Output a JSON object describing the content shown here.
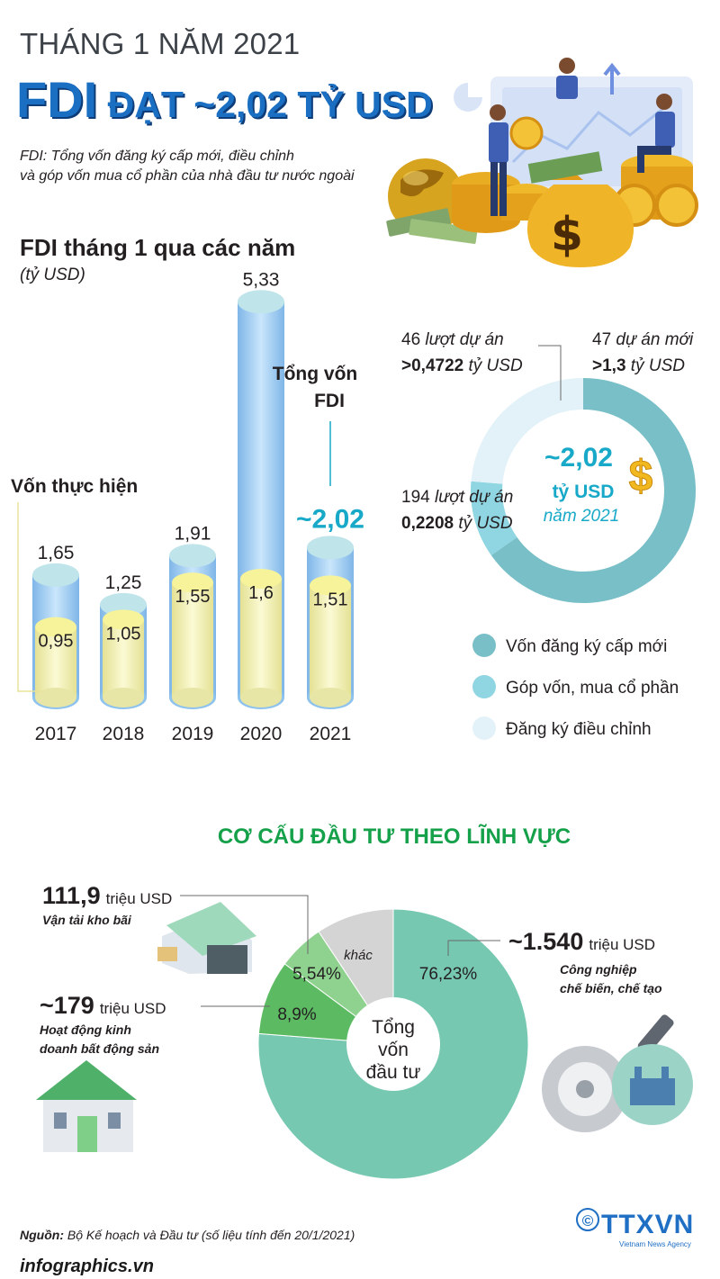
{
  "header": {
    "kicker": "THÁNG 1 NĂM 2021",
    "headline_main": "FDI",
    "headline_rest": " ĐẠT ~2,02 TỶ USD",
    "note_line1": "FDI: Tổng vốn đăng ký cấp mới, điều chỉnh",
    "note_line2": "và góp vốn mua cổ phần của nhà đầu tư nước ngoài"
  },
  "colors": {
    "title_blue": "#1b6fc2",
    "total_bar": "#9fd0ee",
    "realized_bar": "#f3f1a4",
    "new_registration": "#79bfc7",
    "share_purchase": "#8fd5e2",
    "adjusted": "#e2f2f8",
    "accent_cyan": "#18a9c8",
    "sector_green": "#77c8b1",
    "heading_green": "#15a04a"
  },
  "icons": [
    "money-bag-icon",
    "globe-icon",
    "dollar-sign-icon",
    "warehouse-icon",
    "house-icon",
    "gear-wrench-factory-icon"
  ],
  "chart_data": [
    {
      "type": "bar",
      "title": "FDI tháng 1 qua các năm",
      "unit": "(tỷ USD)",
      "categories": [
        "2017",
        "2018",
        "2019",
        "2020",
        "2021"
      ],
      "series": [
        {
          "name": "Tổng vốn FDI",
          "values": [
            1.65,
            1.25,
            1.91,
            5.33,
            2.02
          ],
          "labels": [
            "1,65",
            "1,25",
            "1,91",
            "5,33",
            "~2,02"
          ]
        },
        {
          "name": "Vốn thực hiện",
          "values": [
            0.95,
            1.05,
            1.55,
            1.6,
            1.51
          ],
          "labels": [
            "0,95",
            "1,05",
            "1,55",
            "1,6",
            "1,51"
          ]
        }
      ],
      "annotation_total": "Tổng vốn FDI",
      "annotation_realized": "Vốn thực hiện",
      "ylim": [
        0,
        5.5
      ]
    },
    {
      "type": "pie",
      "center_value": "~2,02",
      "center_unit": "tỷ USD",
      "center_year": "năm 2021",
      "slices": [
        {
          "name": "Vốn đăng ký cấp mới",
          "value": 1.3,
          "count_text": "47 dự án mới",
          "value_text": ">1,3 tỷ USD"
        },
        {
          "name": "Góp vốn, mua cổ phần",
          "value": 0.2208,
          "count_text": "194 lượt dự án",
          "value_text": "0,2208 tỷ USD"
        },
        {
          "name": "Đăng ký điều chỉnh",
          "value": 0.4722,
          "count_text": "46 lượt dự án",
          "value_text": ">0,4722 tỷ USD"
        }
      ],
      "legend": [
        "Vốn đăng ký cấp mới",
        "Góp vốn, mua cổ phần",
        "Đăng ký điều chỉnh"
      ]
    },
    {
      "type": "pie",
      "title": "CƠ CẤU ĐẦU TƯ THEO LĨNH VỰC",
      "center_label": [
        "Tổng",
        "vốn",
        "đầu tư"
      ],
      "slices": [
        {
          "name": "Công nghiệp chế biến, chế tạo",
          "value": 76.23,
          "label": "76,23%",
          "amount": "~1.540",
          "unit": "triệu USD"
        },
        {
          "name": "Hoạt động kinh doanh bất động sản",
          "value": 8.9,
          "label": "8,9%",
          "amount": "~179",
          "unit": "triệu USD"
        },
        {
          "name": "Vận tải kho bãi",
          "value": 5.54,
          "label": "5,54%",
          "amount": "111,9",
          "unit": "triệu USD"
        },
        {
          "name": "khác",
          "value": 9.33,
          "label": "khác"
        }
      ]
    }
  ],
  "footer": {
    "source_label": "Nguồn:",
    "source_text": " Bộ Kế hoạch và Đầu tư (số liệu tính đến 20/1/2021)",
    "brand": "infographics.vn",
    "agency": "TTXVN",
    "agency_sub": "Vietnam News Agency",
    "copyright": "©"
  }
}
